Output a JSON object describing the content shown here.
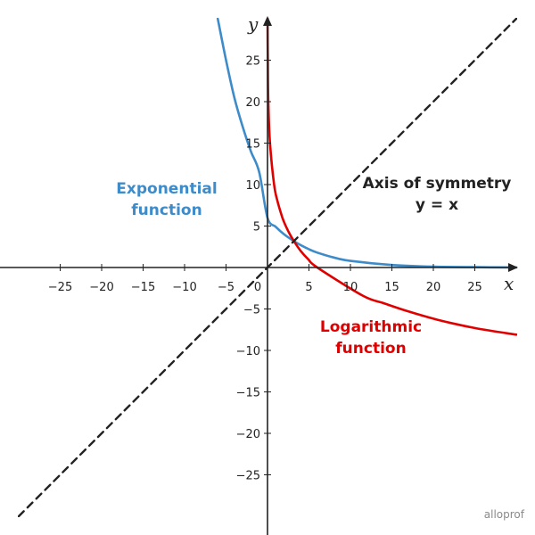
{
  "chart_data": {
    "type": "line",
    "xlabel": "x",
    "ylabel": "y",
    "xlim": [
      -30,
      30
    ],
    "ylim": [
      -30,
      30
    ],
    "x_ticks": [
      -25,
      -20,
      -15,
      -10,
      -5,
      0,
      5,
      10,
      15,
      20,
      25
    ],
    "y_ticks": [
      -25,
      -20,
      -15,
      -10,
      -5,
      5,
      10,
      15,
      20,
      25
    ],
    "series": [
      {
        "color": "#3d8bc9",
        "x": [
          -6,
          -5,
          -4,
          -3,
          -2,
          -1,
          0,
          1,
          2,
          3,
          4,
          5,
          6,
          8,
          10,
          15,
          20,
          25,
          30
        ],
        "y": [
          30,
          25,
          20.5,
          17,
          14,
          11.5,
          6,
          4.9,
          4,
          3.3,
          2.7,
          2.2,
          1.8,
          1.2,
          0.8,
          0.3,
          0.1,
          0.04,
          0.01
        ]
      },
      {
        "color": "#e00000",
        "x": [
          0.01,
          0.04,
          0.1,
          0.3,
          0.8,
          1.2,
          1.8,
          2.2,
          2.7,
          3.3,
          4,
          4.9,
          6,
          11.5,
          14,
          17,
          20.5,
          25,
          30
        ],
        "y": [
          30,
          25,
          20,
          15,
          10,
          8,
          6,
          5,
          4,
          3,
          2,
          1,
          0,
          -3.4,
          -4.3,
          -5.3,
          -6.3,
          -7.3,
          -8.1
        ]
      },
      {
        "color": "#222222",
        "dashed": true,
        "x": [
          -30,
          30
        ],
        "y": [
          -30,
          30
        ]
      }
    ],
    "annotations": {
      "exponential": {
        "line1": "Exponential",
        "line2": "function",
        "color": "#3d8bc9"
      },
      "logarithmic": {
        "line1": "Logarithmic",
        "line2": "function",
        "color": "#e00000"
      },
      "symmetry": {
        "line1": "Axis of symmetry",
        "line2": "y = x",
        "color": "#222222"
      }
    },
    "origin_label": "0",
    "grid": false
  },
  "brand": "alloprof"
}
